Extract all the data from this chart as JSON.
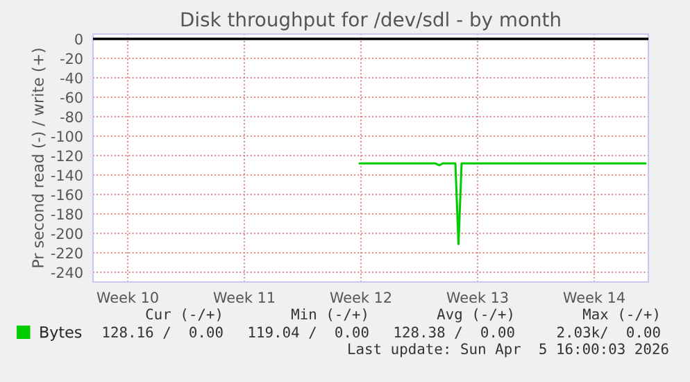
{
  "chart_data": {
    "type": "line",
    "title": "Disk throughput for /dev/sdl - by month",
    "ylabel": "Pr second read (-) / write (+)",
    "xlim": [
      "2026-03-03T08:00",
      "2026-04-05T16:00"
    ],
    "xticks": [
      {
        "value": "2026-03-05T10:00",
        "label": "Week 10"
      },
      {
        "value": "2026-03-12T10:00",
        "label": "Week 11"
      },
      {
        "value": "2026-03-19T10:00",
        "label": "Week 12"
      },
      {
        "value": "2026-03-26T10:00",
        "label": "Week 13"
      },
      {
        "value": "2026-04-02T10:00",
        "label": "Week 14"
      }
    ],
    "ylim": [
      -250,
      5
    ],
    "yticks": [
      0,
      -20,
      -40,
      -60,
      -80,
      -100,
      -120,
      -140,
      -160,
      -180,
      -200,
      -220,
      -240
    ],
    "series": [
      {
        "name": "Bytes",
        "color": "#00cc00",
        "x": [
          "2026-03-19T08:00",
          "2026-03-21T00:00",
          "2026-03-23T21:00",
          "2026-03-24T03:00",
          "2026-03-24T08:00",
          "2026-03-25T02:00",
          "2026-03-25T06:30",
          "2026-03-25T11:00",
          "2026-03-28T00:00",
          "2026-04-01T00:00",
          "2026-04-05T12:00"
        ],
        "values": [
          -128,
          -128,
          -128,
          -130,
          -128,
          -128,
          -211,
          -128,
          -128,
          -128,
          -128
        ]
      }
    ],
    "ref_lines": [
      {
        "axis": "y",
        "value": 0,
        "color": "#000000"
      }
    ],
    "grid": true,
    "line_style": "solid",
    "marker": "none",
    "legend": "bottom left",
    "annotations": [
      "Cur (-/+)",
      "Min (-/+)",
      "Avg (-/+)",
      "Max (-/+)",
      "128.16 /  0.00",
      "119.04 /  0.00",
      "128.38 /  0.00",
      "2.03k/  0.00",
      "Last update: Sun Apr  5 16:00:03 2026"
    ]
  }
}
